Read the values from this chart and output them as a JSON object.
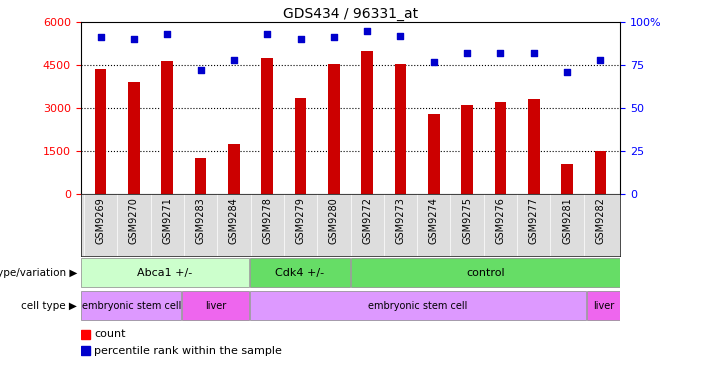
{
  "title": "GDS434 / 96331_at",
  "samples": [
    "GSM9269",
    "GSM9270",
    "GSM9271",
    "GSM9283",
    "GSM9284",
    "GSM9278",
    "GSM9279",
    "GSM9280",
    "GSM9272",
    "GSM9273",
    "GSM9274",
    "GSM9275",
    "GSM9276",
    "GSM9277",
    "GSM9281",
    "GSM9282"
  ],
  "counts": [
    4350,
    3900,
    4650,
    1250,
    1750,
    4750,
    3350,
    4550,
    5000,
    4550,
    2800,
    3100,
    3200,
    3300,
    1050,
    1500
  ],
  "percentiles": [
    91,
    90,
    93,
    72,
    78,
    93,
    90,
    91,
    95,
    92,
    77,
    82,
    82,
    82,
    71,
    78
  ],
  "ylim_left": [
    0,
    6000
  ],
  "ylim_right": [
    0,
    100
  ],
  "yticks_left": [
    0,
    1500,
    3000,
    4500,
    6000
  ],
  "yticks_right": [
    0,
    25,
    50,
    75,
    100
  ],
  "bar_color": "#cc0000",
  "dot_color": "#0000cc",
  "background_color": "#ffffff",
  "genotype_groups": [
    {
      "label": "Abca1 +/-",
      "start": 0,
      "end": 4,
      "color": "#ccffcc"
    },
    {
      "label": "Cdk4 +/-",
      "start": 5,
      "end": 7,
      "color": "#66dd66"
    },
    {
      "label": "control",
      "start": 8,
      "end": 15,
      "color": "#66dd66"
    }
  ],
  "celltype_groups": [
    {
      "label": "embryonic stem cell",
      "start": 0,
      "end": 2,
      "color": "#dd99ff"
    },
    {
      "label": "liver",
      "start": 3,
      "end": 4,
      "color": "#ee66ee"
    },
    {
      "label": "embryonic stem cell",
      "start": 5,
      "end": 14,
      "color": "#dd99ff"
    },
    {
      "label": "liver",
      "start": 15,
      "end": 15,
      "color": "#ee66ee"
    }
  ],
  "legend_count_label": "count",
  "legend_pct_label": "percentile rank within the sample",
  "genotype_label": "genotype/variation",
  "celltype_label": "cell type"
}
